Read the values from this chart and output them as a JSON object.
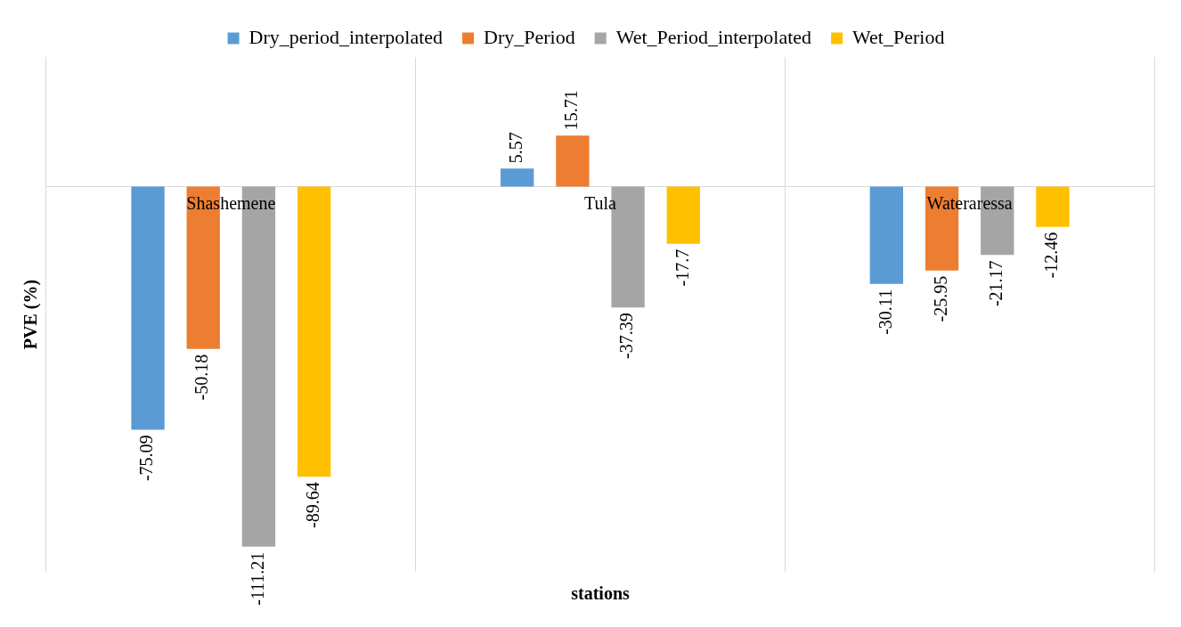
{
  "chart_data": {
    "type": "bar",
    "xlabel": "stations",
    "ylabel": "PVE (%)",
    "categories": [
      "Shashemene",
      "Tula",
      "Wateraressa"
    ],
    "series": [
      {
        "name": "Dry_period_interpolated",
        "color": "#5b9bd5",
        "values": [
          -75.09,
          5.57,
          -30.11
        ]
      },
      {
        "name": "Dry_Period",
        "color": "#ed7d31",
        "values": [
          -50.18,
          15.71,
          -25.95
        ]
      },
      {
        "name": "Wet_Period_interpolated",
        "color": "#a5a5a5",
        "values": [
          -111.21,
          -37.39,
          -21.17
        ]
      },
      {
        "name": "Wet_Period",
        "color": "#ffc000",
        "values": [
          -89.64,
          -17.7,
          -12.46
        ]
      }
    ],
    "ylim": [
      -119,
      40
    ],
    "data_labels": true,
    "grid": "x",
    "legend": "top",
    "tick_labels": "x"
  }
}
